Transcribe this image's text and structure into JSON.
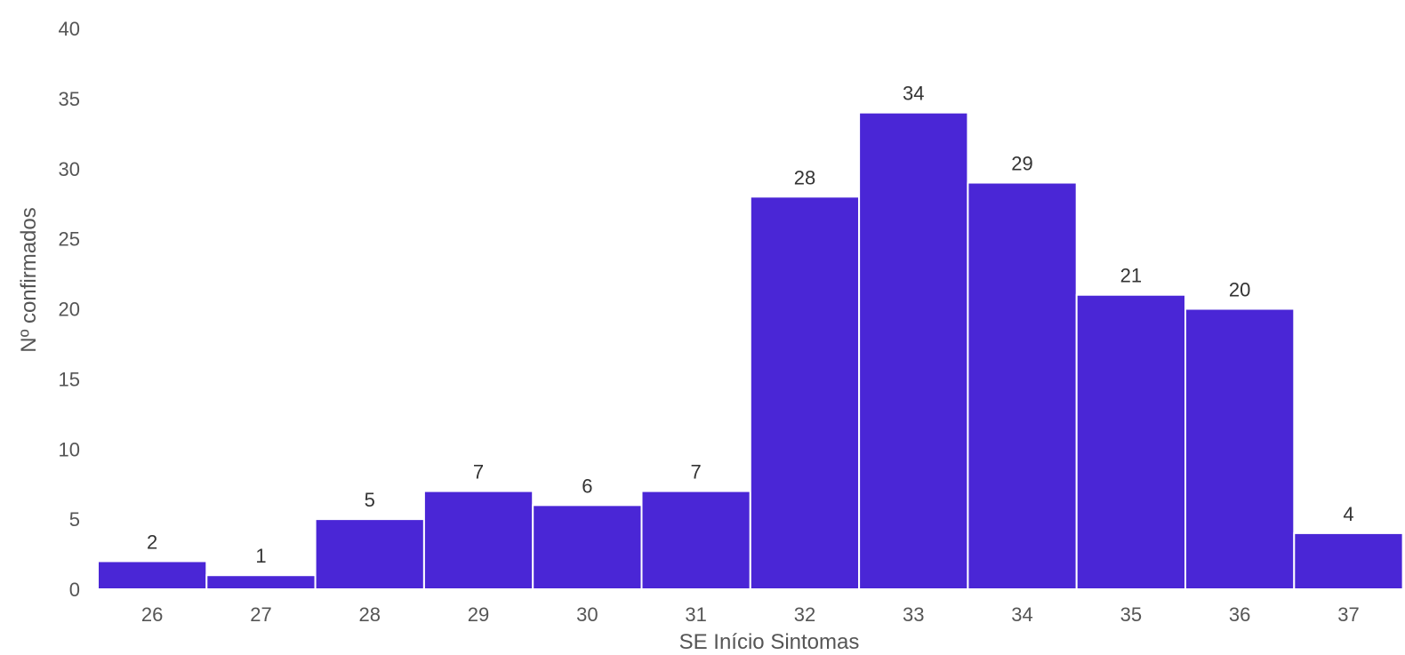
{
  "chart_data": {
    "type": "bar",
    "xlabel": "SE Início Sintomas",
    "ylabel": "Nº confirmados",
    "categories": [
      "26",
      "27",
      "28",
      "29",
      "30",
      "31",
      "32",
      "33",
      "34",
      "35",
      "36",
      "37"
    ],
    "values": [
      2,
      1,
      5,
      7,
      6,
      7,
      28,
      34,
      29,
      21,
      20,
      4
    ],
    "ylim": [
      0,
      40
    ],
    "yticks": [
      0,
      5,
      10,
      15,
      20,
      25,
      30,
      35,
      40
    ],
    "grid": false,
    "legend": "none",
    "bar_color": "#4a26d6"
  }
}
